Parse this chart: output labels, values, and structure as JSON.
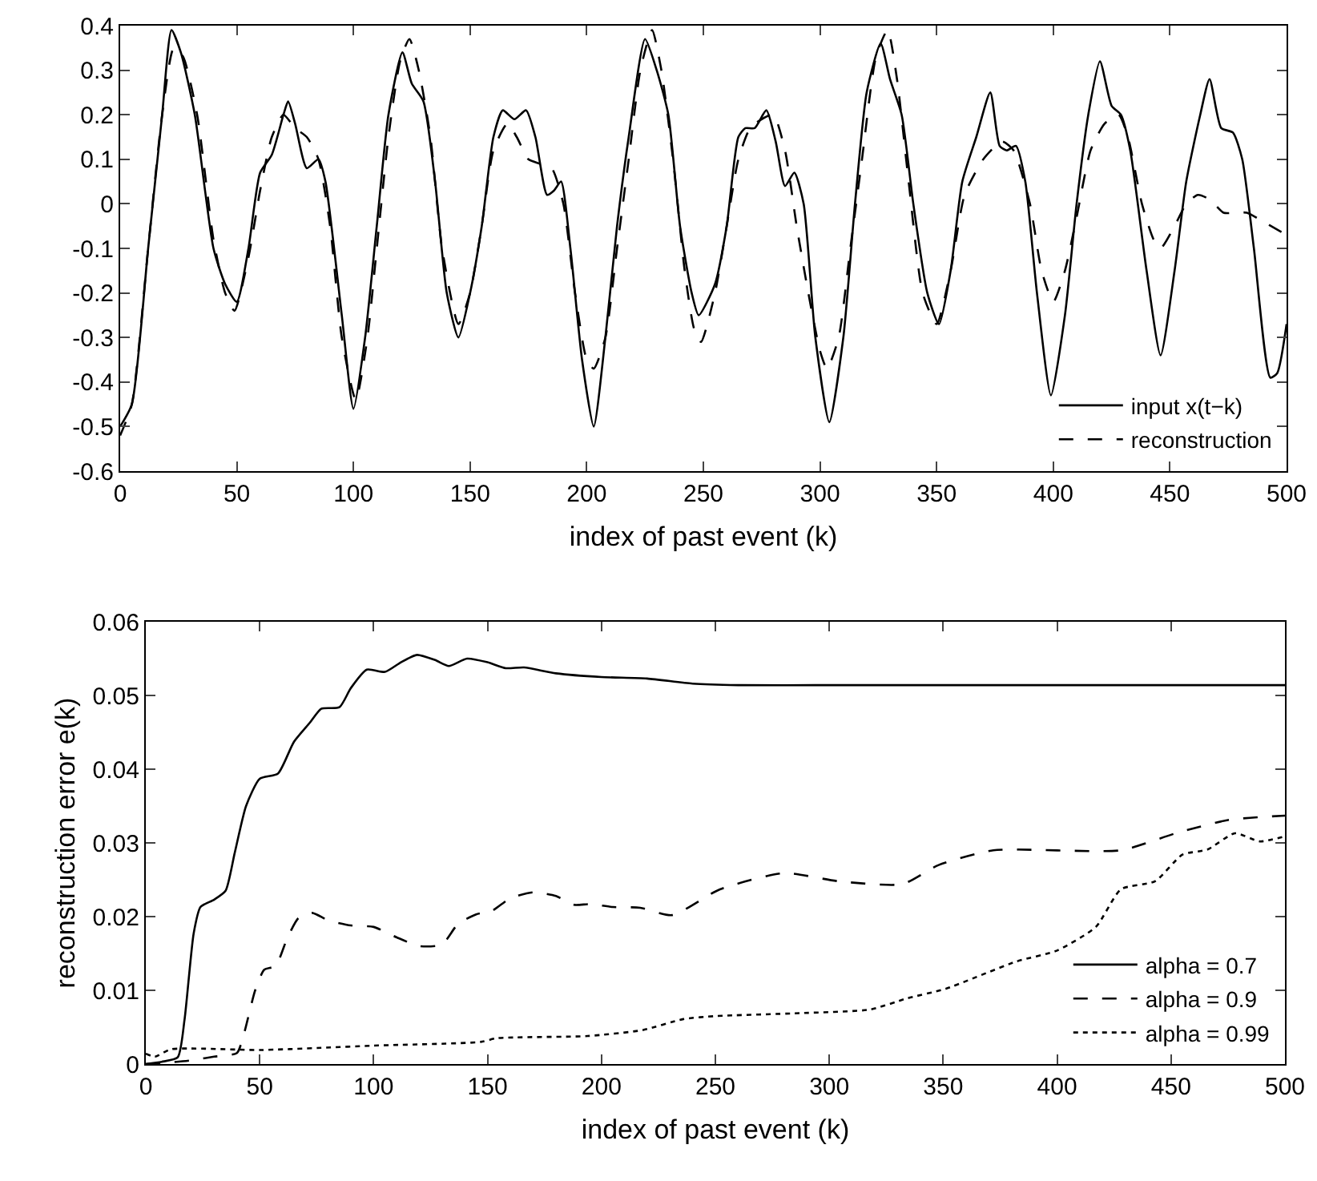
{
  "chart_data": [
    {
      "type": "line",
      "xlabel": "index of past event (k)",
      "xlim": [
        0,
        500
      ],
      "ylim": [
        -0.6,
        0.4
      ],
      "xticks": [
        0,
        50,
        100,
        150,
        200,
        250,
        300,
        350,
        400,
        450,
        500
      ],
      "yticks": [
        -0.6,
        -0.5,
        -0.4,
        -0.3,
        -0.2,
        -0.1,
        0,
        0.1,
        0.2,
        0.3,
        0.4
      ],
      "legend": "bottom right",
      "series": [
        {
          "name": "input x(t−k)",
          "color": "#000000",
          "line_style": "solid",
          "x": [
            0,
            5,
            12,
            18,
            22,
            26,
            32,
            40,
            45,
            50,
            55,
            60,
            65,
            70,
            72,
            75,
            80,
            85,
            88,
            95,
            100,
            105,
            110,
            115,
            121,
            125,
            130,
            135,
            140,
            145,
            150,
            155,
            160,
            164,
            169,
            174,
            178,
            183,
            186,
            189,
            193,
            198,
            203,
            208,
            213,
            218,
            225,
            230,
            235,
            240,
            245,
            248,
            255,
            260,
            265,
            268,
            272,
            277,
            281,
            285,
            289,
            293,
            298,
            304,
            310,
            315,
            320,
            326,
            330,
            335,
            340,
            346,
            351,
            356,
            361,
            367,
            373,
            377,
            380,
            384,
            388,
            393,
            399,
            405,
            410,
            415,
            420,
            425,
            429,
            433,
            440,
            446,
            452,
            457,
            463,
            467,
            472,
            477,
            481,
            486,
            493,
            496,
            500
          ],
          "values": [
            -0.5,
            -0.45,
            -0.1,
            0.2,
            0.39,
            0.34,
            0.2,
            -0.1,
            -0.18,
            -0.22,
            -0.1,
            0.07,
            0.11,
            0.2,
            0.23,
            0.18,
            0.08,
            0.1,
            0.05,
            -0.25,
            -0.46,
            -0.3,
            -0.05,
            0.2,
            0.34,
            0.27,
            0.23,
            0.05,
            -0.2,
            -0.3,
            -0.2,
            -0.05,
            0.15,
            0.21,
            0.19,
            0.21,
            0.15,
            0.02,
            0.03,
            0.05,
            -0.1,
            -0.35,
            -0.5,
            -0.3,
            -0.05,
            0.15,
            0.37,
            0.3,
            0.2,
            -0.05,
            -0.2,
            -0.25,
            -0.18,
            -0.05,
            0.15,
            0.17,
            0.17,
            0.21,
            0.14,
            0.04,
            0.07,
            0.0,
            -0.3,
            -0.49,
            -0.3,
            0.0,
            0.25,
            0.36,
            0.28,
            0.2,
            0.0,
            -0.2,
            -0.27,
            -0.15,
            0.05,
            0.15,
            0.25,
            0.13,
            0.12,
            0.13,
            0.05,
            -0.2,
            -0.43,
            -0.25,
            0.0,
            0.2,
            0.32,
            0.22,
            0.2,
            0.12,
            -0.15,
            -0.34,
            -0.15,
            0.05,
            0.2,
            0.28,
            0.17,
            0.16,
            0.1,
            -0.1,
            -0.39,
            -0.38,
            -0.27
          ]
        },
        {
          "name": "reconstruction",
          "color": "#000000",
          "line_style": "dashed",
          "x": [
            0,
            5,
            12,
            18,
            23,
            27,
            33,
            40,
            45,
            49,
            55,
            60,
            65,
            70,
            75,
            80,
            85,
            90,
            95,
            101,
            106,
            110,
            115,
            120,
            124,
            128,
            133,
            138,
            145,
            150,
            155,
            160,
            166,
            170,
            175,
            180,
            185,
            190,
            195,
            200,
            203,
            208,
            213,
            218,
            223,
            228,
            232,
            237,
            242,
            246,
            249,
            255,
            260,
            265,
            270,
            275,
            280,
            285,
            290,
            295,
            300,
            303,
            308,
            313,
            318,
            324,
            329,
            333,
            338,
            344,
            350,
            356,
            362,
            370,
            378,
            383,
            390,
            395,
            400,
            405,
            410,
            416,
            422,
            428,
            432,
            438,
            443,
            446,
            452,
            457,
            462,
            467,
            473,
            478,
            483,
            490,
            500
          ],
          "values": [
            -0.52,
            -0.45,
            -0.1,
            0.2,
            0.35,
            0.33,
            0.2,
            -0.08,
            -0.2,
            -0.24,
            -0.12,
            0.03,
            0.15,
            0.2,
            0.17,
            0.15,
            0.1,
            -0.05,
            -0.3,
            -0.44,
            -0.3,
            -0.1,
            0.15,
            0.32,
            0.37,
            0.3,
            0.15,
            -0.1,
            -0.27,
            -0.2,
            -0.05,
            0.12,
            0.18,
            0.15,
            0.1,
            0.09,
            0.08,
            0.0,
            -0.2,
            -0.35,
            -0.37,
            -0.3,
            -0.1,
            0.1,
            0.3,
            0.39,
            0.3,
            0.1,
            -0.15,
            -0.28,
            -0.31,
            -0.2,
            -0.05,
            0.1,
            0.17,
            0.19,
            0.2,
            0.12,
            -0.05,
            -0.2,
            -0.33,
            -0.37,
            -0.3,
            -0.1,
            0.1,
            0.33,
            0.39,
            0.28,
            0.05,
            -0.2,
            -0.27,
            -0.15,
            0.02,
            0.1,
            0.14,
            0.12,
            0.0,
            -0.15,
            -0.22,
            -0.15,
            -0.03,
            0.12,
            0.18,
            0.2,
            0.15,
            0.0,
            -0.08,
            -0.1,
            -0.05,
            0.0,
            0.02,
            0.01,
            -0.02,
            -0.02,
            -0.02,
            -0.04,
            -0.07
          ]
        }
      ]
    },
    {
      "type": "line",
      "xlabel": "index of past event (k)",
      "ylabel": "reconstruction error e(k)",
      "xlim": [
        0,
        500
      ],
      "ylim": [
        0,
        0.06
      ],
      "xticks": [
        0,
        50,
        100,
        150,
        200,
        250,
        300,
        350,
        400,
        450,
        500
      ],
      "yticks": [
        0,
        0.01,
        0.02,
        0.03,
        0.04,
        0.05,
        0.06
      ],
      "legend": "bottom right",
      "series": [
        {
          "name": "alpha = 0.7",
          "color": "#000000",
          "line_style": "solid",
          "x": [
            0,
            7,
            14,
            17,
            21,
            24,
            30,
            35,
            39,
            44,
            50,
            58,
            65,
            72,
            77,
            85,
            90,
            97,
            105,
            112,
            119,
            127,
            133,
            141,
            150,
            158,
            166,
            180,
            200,
            220,
            240,
            260,
            300,
            350,
            400,
            450,
            500
          ],
          "values": [
            0.0,
            0.0003,
            0.0009,
            0.006,
            0.0177,
            0.0213,
            0.0223,
            0.0235,
            0.0286,
            0.035,
            0.0387,
            0.0394,
            0.0437,
            0.0463,
            0.0482,
            0.0484,
            0.051,
            0.0535,
            0.0532,
            0.0545,
            0.0555,
            0.0548,
            0.054,
            0.055,
            0.0545,
            0.0537,
            0.0538,
            0.053,
            0.0525,
            0.0523,
            0.0516,
            0.0514,
            0.0514,
            0.0514,
            0.0514,
            0.0514,
            0.0514
          ]
        },
        {
          "name": "alpha = 0.9",
          "color": "#000000",
          "line_style": "dashed",
          "x": [
            0,
            10,
            20,
            30,
            40,
            43,
            48,
            52,
            57,
            62,
            67,
            73,
            80,
            90,
            100,
            110,
            120,
            130,
            137,
            145,
            152,
            160,
            170,
            180,
            188,
            195,
            205,
            217,
            231,
            252,
            280,
            304,
            332,
            348,
            372,
            428,
            452,
            475,
            500
          ],
          "values": [
            0.0,
            0.0002,
            0.0005,
            0.001,
            0.0015,
            0.004,
            0.01,
            0.0128,
            0.0133,
            0.017,
            0.0198,
            0.0205,
            0.0195,
            0.0188,
            0.0186,
            0.0172,
            0.016,
            0.0162,
            0.019,
            0.0203,
            0.0208,
            0.0225,
            0.0233,
            0.0228,
            0.0216,
            0.0217,
            0.0213,
            0.0212,
            0.0202,
            0.0237,
            0.0259,
            0.0248,
            0.0244,
            0.027,
            0.029,
            0.029,
            0.0313,
            0.0331,
            0.0337
          ]
        },
        {
          "name": "alpha = 0.99",
          "color": "#000000",
          "line_style": "dotted",
          "x": [
            0,
            4,
            11,
            50,
            77,
            100,
            147,
            154,
            194,
            218,
            236,
            250,
            287,
            318,
            334,
            351,
            382,
            400,
            417,
            428,
            443,
            455,
            466,
            478,
            489,
            500
          ],
          "values": [
            0.0014,
            0.001,
            0.002,
            0.0019,
            0.0022,
            0.0025,
            0.003,
            0.0035,
            0.0038,
            0.0046,
            0.0061,
            0.0065,
            0.0069,
            0.0074,
            0.0089,
            0.0102,
            0.0139,
            0.0154,
            0.0186,
            0.0237,
            0.0248,
            0.0284,
            0.0291,
            0.0313,
            0.0302,
            0.0309
          ]
        }
      ]
    }
  ]
}
